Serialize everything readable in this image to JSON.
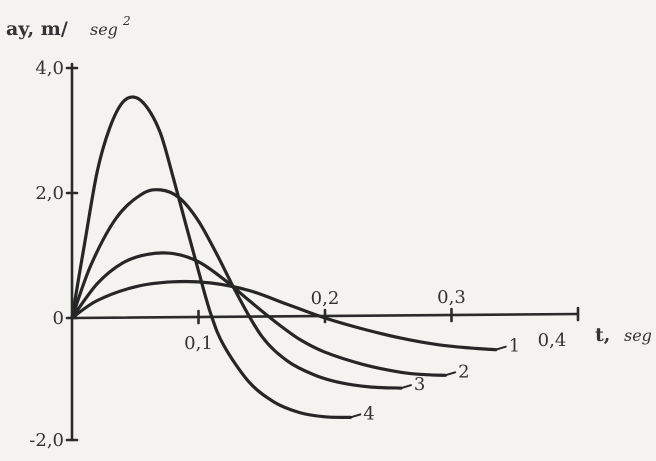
{
  "chart_data": {
    "type": "line",
    "ylabel": "ay, m/",
    "ylabel_unit": "seg",
    "ylabel_sup": "2",
    "xlabel": "t,",
    "xlabel_unit": "seg",
    "ylim": [
      -2.0,
      4.0
    ],
    "xlim": [
      0,
      0.4
    ],
    "y_ticks": [
      {
        "value": 4.0,
        "label": "4,0"
      },
      {
        "value": 2.0,
        "label": "2,0"
      },
      {
        "value": 0,
        "label": "0"
      },
      {
        "value": -2.0,
        "label": "-2,0"
      }
    ],
    "x_ticks": [
      {
        "value": 0.1,
        "label": "0,1",
        "side": "below"
      },
      {
        "value": 0.2,
        "label": "0,2",
        "side": "above"
      },
      {
        "value": 0.3,
        "label": "0,3",
        "side": "above"
      },
      {
        "value": 0.4,
        "label": "0,4",
        "side": "below"
      }
    ],
    "grid": false,
    "series": [
      {
        "name": "1",
        "x": [
          0,
          0.02,
          0.05,
          0.08,
          0.11,
          0.14,
          0.17,
          0.2,
          0.23,
          0.26,
          0.29,
          0.32,
          0.335
        ],
        "y": [
          0,
          0.28,
          0.5,
          0.58,
          0.56,
          0.44,
          0.22,
          0.0,
          -0.18,
          -0.33,
          -0.44,
          -0.5,
          -0.52
        ]
      },
      {
        "name": "2",
        "x": [
          0,
          0.02,
          0.04,
          0.06,
          0.08,
          0.1,
          0.12,
          0.14,
          0.16,
          0.18,
          0.2,
          0.23,
          0.26,
          0.28,
          0.295
        ],
        "y": [
          0,
          0.55,
          0.88,
          1.02,
          1.03,
          0.9,
          0.62,
          0.28,
          -0.05,
          -0.35,
          -0.56,
          -0.76,
          -0.89,
          -0.93,
          -0.94
        ]
      },
      {
        "name": "3",
        "x": [
          0,
          0.015,
          0.035,
          0.055,
          0.07,
          0.085,
          0.1,
          0.115,
          0.13,
          0.15,
          0.17,
          0.19,
          0.21,
          0.235,
          0.26
        ],
        "y": [
          0,
          0.85,
          1.6,
          1.98,
          2.05,
          1.92,
          1.55,
          1.0,
          0.4,
          -0.3,
          -0.7,
          -0.92,
          -1.05,
          -1.13,
          -1.15
        ]
      },
      {
        "name": "4",
        "x": [
          0,
          0.01,
          0.02,
          0.03,
          0.04,
          0.05,
          0.06,
          0.07,
          0.08,
          0.09,
          0.1,
          0.11,
          0.12,
          0.14,
          0.16,
          0.18,
          0.2,
          0.22
        ],
        "y": [
          0,
          1.2,
          2.35,
          3.05,
          3.45,
          3.53,
          3.35,
          2.95,
          2.25,
          1.5,
          0.75,
          0.05,
          -0.45,
          -1.05,
          -1.38,
          -1.55,
          -1.62,
          -1.63
        ]
      }
    ]
  }
}
